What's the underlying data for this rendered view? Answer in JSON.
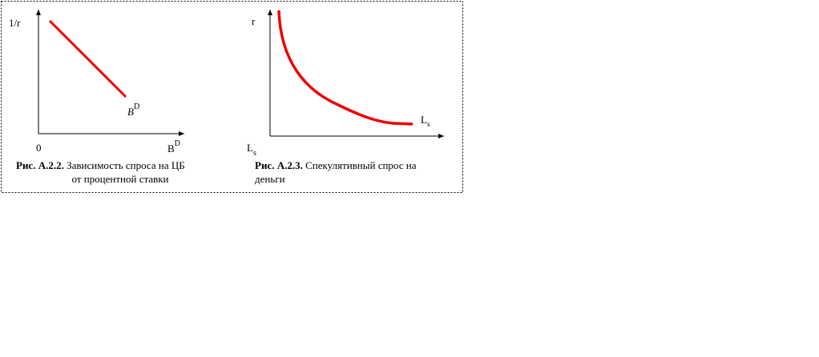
{
  "figures": [
    {
      "y_axis_label": "1/r",
      "origin_label": "0",
      "x_axis_label": {
        "base": "B",
        "sup": "D"
      },
      "curve_label": {
        "base": "B",
        "sup": "D"
      },
      "caption": {
        "number": "Рис. А.2.2.",
        "lines": [
          "Зависимость спроса на ЦБ",
          "от процентной ставки"
        ]
      }
    },
    {
      "y_axis_label": "r",
      "x_axis_label": {
        "base": "L",
        "sub": "s"
      },
      "curve_label": {
        "base": "L",
        "sub": "s"
      },
      "caption": {
        "number": "Рис. А.2.3.",
        "lines": [
          "Спекулятивный спрос на",
          "деньги"
        ]
      }
    }
  ]
}
